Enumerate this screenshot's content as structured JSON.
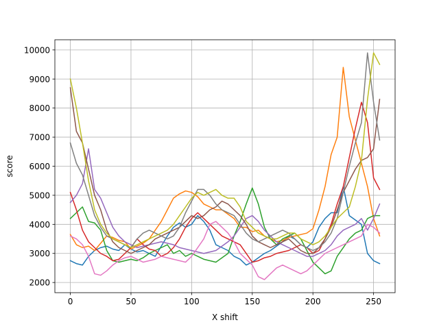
{
  "chart_data": {
    "type": "line",
    "title": "",
    "xlabel": "X shift",
    "ylabel": "score",
    "xlim": [
      -12.75,
      267.75
    ],
    "ylim": [
      1650,
      10350
    ],
    "xticks": [
      0,
      50,
      100,
      150,
      200,
      250
    ],
    "yticks": [
      2000,
      3000,
      4000,
      5000,
      6000,
      7000,
      8000,
      9000,
      10000
    ],
    "grid": true,
    "legend": "none",
    "series": [
      {
        "color": "#1f77b4",
        "x": [
          0,
          5,
          10,
          15,
          20,
          25,
          30,
          35,
          40,
          45,
          50,
          55,
          60,
          65,
          70,
          75,
          80,
          85,
          90,
          95,
          100,
          105,
          110,
          115,
          120,
          125,
          130,
          135,
          140,
          145,
          150,
          155,
          160,
          165,
          170,
          175,
          180,
          185,
          190,
          195,
          200,
          205,
          210,
          215,
          220,
          225,
          230,
          235,
          240,
          245,
          250,
          255
        ],
        "y": [
          2750,
          2650,
          2600,
          2900,
          3100,
          3200,
          3250,
          3150,
          3100,
          3300,
          3150,
          3050,
          3100,
          3000,
          2900,
          3250,
          3600,
          3900,
          4050,
          3900,
          4000,
          4300,
          4100,
          3800,
          3300,
          3200,
          3100,
          2900,
          2800,
          2600,
          2700,
          2850,
          3000,
          3100,
          3250,
          3400,
          3600,
          3500,
          3300,
          3200,
          3400,
          3900,
          4200,
          4400,
          4400,
          5300,
          4300,
          4150,
          4000,
          3000,
          2750,
          2650
        ]
      },
      {
        "color": "#ff7f0e",
        "x": [
          0,
          5,
          10,
          15,
          20,
          25,
          30,
          35,
          40,
          45,
          50,
          55,
          60,
          65,
          70,
          75,
          80,
          85,
          90,
          95,
          100,
          105,
          110,
          115,
          120,
          125,
          130,
          135,
          140,
          145,
          150,
          155,
          160,
          165,
          170,
          175,
          180,
          185,
          190,
          195,
          200,
          205,
          210,
          215,
          220,
          225,
          230,
          235,
          240,
          245,
          250,
          255
        ],
        "y": [
          3650,
          3300,
          3200,
          3250,
          3100,
          3350,
          3600,
          3550,
          3450,
          3400,
          3150,
          3250,
          3350,
          3500,
          3800,
          4100,
          4500,
          4900,
          5050,
          5150,
          5100,
          4950,
          4700,
          4600,
          4500,
          4500,
          4350,
          4200,
          3900,
          3900,
          3750,
          3800,
          3600,
          3500,
          3400,
          3450,
          3550,
          3600,
          3650,
          3700,
          3850,
          4500,
          5300,
          6400,
          7000,
          9400,
          7700,
          6900,
          6100,
          5300,
          4200,
          3600
        ]
      },
      {
        "color": "#2ca02c",
        "x": [
          0,
          5,
          10,
          15,
          20,
          25,
          30,
          35,
          40,
          45,
          50,
          55,
          60,
          65,
          70,
          75,
          80,
          85,
          90,
          95,
          100,
          105,
          110,
          115,
          120,
          125,
          130,
          135,
          140,
          145,
          150,
          155,
          160,
          165,
          170,
          175,
          180,
          185,
          190,
          195,
          200,
          205,
          210,
          215,
          220,
          225,
          230,
          235,
          240,
          245,
          250,
          255
        ],
        "y": [
          4200,
          4400,
          4600,
          4100,
          4050,
          3800,
          3100,
          2750,
          2700,
          2750,
          2800,
          2750,
          2850,
          3000,
          3100,
          3200,
          3300,
          3000,
          3100,
          2900,
          3000,
          2900,
          2800,
          2750,
          2700,
          2850,
          3000,
          3600,
          4100,
          4700,
          5250,
          4700,
          3900,
          3500,
          3300,
          3500,
          3600,
          3700,
          3500,
          3100,
          2700,
          2500,
          2300,
          2400,
          2900,
          3200,
          3500,
          3700,
          3800,
          4200,
          4300,
          4300
        ]
      },
      {
        "color": "#d62728",
        "x": [
          0,
          5,
          10,
          15,
          20,
          25,
          30,
          35,
          40,
          45,
          50,
          55,
          60,
          65,
          70,
          75,
          80,
          85,
          90,
          95,
          100,
          105,
          110,
          115,
          120,
          125,
          130,
          135,
          140,
          145,
          150,
          155,
          160,
          165,
          170,
          175,
          180,
          185,
          190,
          195,
          200,
          205,
          210,
          215,
          220,
          225,
          230,
          235,
          240,
          245,
          250,
          255
        ],
        "y": [
          5100,
          4500,
          3800,
          3400,
          3200,
          3000,
          2900,
          2750,
          2800,
          3000,
          3200,
          3500,
          3300,
          3150,
          3100,
          2900,
          3000,
          3200,
          3500,
          3900,
          4200,
          4400,
          4200,
          4000,
          3800,
          3600,
          3500,
          3400,
          3300,
          3000,
          2700,
          2750,
          2850,
          2900,
          3000,
          3050,
          3100,
          3200,
          3300,
          3200,
          3000,
          3100,
          3500,
          4000,
          4700,
          5300,
          6300,
          7300,
          8200,
          7500,
          5600,
          5200
        ]
      },
      {
        "color": "#9467bd",
        "x": [
          0,
          5,
          10,
          15,
          20,
          25,
          30,
          35,
          40,
          45,
          50,
          55,
          60,
          65,
          70,
          75,
          80,
          85,
          90,
          95,
          100,
          105,
          110,
          115,
          120,
          125,
          130,
          135,
          140,
          145,
          150,
          155,
          160,
          165,
          170,
          175,
          180,
          185,
          190,
          195,
          200,
          205,
          210,
          215,
          220,
          225,
          230,
          235,
          240,
          245,
          250,
          255
        ],
        "y": [
          4750,
          5000,
          5400,
          6600,
          5200,
          4900,
          4400,
          3900,
          3600,
          3400,
          3300,
          3200,
          3250,
          3300,
          3350,
          3400,
          3350,
          3300,
          3200,
          3150,
          3100,
          3050,
          3000,
          3050,
          3100,
          3250,
          3400,
          3600,
          3900,
          4200,
          4300,
          4100,
          3800,
          3600,
          3400,
          3300,
          3200,
          3100,
          3000,
          2900,
          2900,
          3000,
          3100,
          3300,
          3600,
          3800,
          3900,
          4000,
          4200,
          3800,
          4200,
          4700
        ]
      },
      {
        "color": "#8c564b",
        "x": [
          0,
          5,
          10,
          15,
          20,
          25,
          30,
          35,
          40,
          45,
          50,
          55,
          60,
          65,
          70,
          75,
          80,
          85,
          90,
          95,
          100,
          105,
          110,
          115,
          120,
          125,
          130,
          135,
          140,
          145,
          150,
          155,
          160,
          165,
          170,
          175,
          180,
          185,
          190,
          195,
          200,
          205,
          210,
          215,
          220,
          225,
          230,
          235,
          240,
          245,
          250,
          255
        ],
        "y": [
          8700,
          7200,
          6800,
          5900,
          5000,
          4500,
          3800,
          3400,
          3200,
          3100,
          3000,
          3100,
          3200,
          3300,
          3500,
          3600,
          3700,
          3800,
          3900,
          4100,
          4300,
          4200,
          4300,
          4500,
          4600,
          4800,
          4700,
          4500,
          4300,
          4000,
          3600,
          3400,
          3300,
          3200,
          3300,
          3400,
          3500,
          3300,
          3100,
          3000,
          3000,
          3200,
          3500,
          3900,
          4500,
          5100,
          5500,
          5900,
          6200,
          6300,
          6600,
          8300
        ]
      },
      {
        "color": "#e377c2",
        "x": [
          0,
          5,
          10,
          15,
          20,
          25,
          30,
          35,
          40,
          45,
          50,
          55,
          60,
          65,
          70,
          75,
          80,
          85,
          90,
          95,
          100,
          105,
          110,
          115,
          120,
          125,
          130,
          135,
          140,
          145,
          150,
          155,
          160,
          165,
          170,
          175,
          180,
          185,
          190,
          195,
          200,
          205,
          210,
          215,
          220,
          225,
          230,
          235,
          240,
          245,
          250,
          255
        ],
        "y": [
          3600,
          3500,
          3300,
          2900,
          2300,
          2250,
          2400,
          2600,
          2750,
          2850,
          2900,
          2800,
          2700,
          2750,
          2800,
          2900,
          2850,
          2800,
          2750,
          2700,
          2900,
          3200,
          3500,
          4000,
          4100,
          3900,
          3700,
          3400,
          3000,
          2800,
          2600,
          2200,
          2100,
          2300,
          2500,
          2600,
          2500,
          2400,
          2300,
          2400,
          2600,
          2800,
          3000,
          3100,
          3200,
          3300,
          3400,
          3500,
          3600,
          4000,
          3900,
          3700
        ]
      },
      {
        "color": "#7f7f7f",
        "x": [
          0,
          5,
          10,
          15,
          20,
          25,
          30,
          35,
          40,
          45,
          50,
          55,
          60,
          65,
          70,
          75,
          80,
          85,
          90,
          95,
          100,
          105,
          110,
          115,
          120,
          125,
          130,
          135,
          140,
          145,
          150,
          155,
          160,
          165,
          170,
          175,
          180,
          185,
          190,
          195,
          200,
          205,
          210,
          215,
          220,
          225,
          230,
          235,
          240,
          245,
          250,
          255
        ],
        "y": [
          6800,
          6100,
          5700,
          5000,
          4300,
          3900,
          3600,
          3500,
          3400,
          3300,
          3200,
          3500,
          3700,
          3800,
          3700,
          3600,
          3500,
          3600,
          3900,
          4400,
          4800,
          5200,
          5200,
          5000,
          4700,
          4500,
          4400,
          4300,
          4000,
          3700,
          3500,
          3400,
          3500,
          3600,
          3700,
          3800,
          3700,
          3500,
          3300,
          3200,
          3100,
          3200,
          3400,
          3700,
          4200,
          5100,
          6000,
          6800,
          7500,
          9900,
          8200,
          6900
        ]
      },
      {
        "color": "#bcbd22",
        "x": [
          0,
          5,
          10,
          15,
          20,
          25,
          30,
          35,
          40,
          45,
          50,
          55,
          60,
          65,
          70,
          75,
          80,
          85,
          90,
          95,
          100,
          105,
          110,
          115,
          120,
          125,
          130,
          135,
          140,
          145,
          150,
          155,
          160,
          165,
          170,
          175,
          180,
          185,
          190,
          195,
          200,
          205,
          210,
          215,
          220,
          225,
          230,
          235,
          240,
          245,
          250,
          255
        ],
        "y": [
          9000,
          8000,
          6800,
          5500,
          4500,
          4000,
          3700,
          3500,
          3400,
          3300,
          3200,
          3300,
          3400,
          3500,
          3600,
          3700,
          3800,
          4000,
          4300,
          4600,
          4900,
          5100,
          5000,
          5100,
          5200,
          5000,
          4900,
          4900,
          4600,
          4100,
          3900,
          3700,
          3600,
          3500,
          3500,
          3600,
          3700,
          3700,
          3500,
          3400,
          3300,
          3400,
          3600,
          3900,
          4200,
          4400,
          4600,
          5300,
          6200,
          8300,
          9900,
          9500
        ]
      },
      {
        "color": "#17becf",
        "x": [],
        "y": []
      }
    ]
  }
}
